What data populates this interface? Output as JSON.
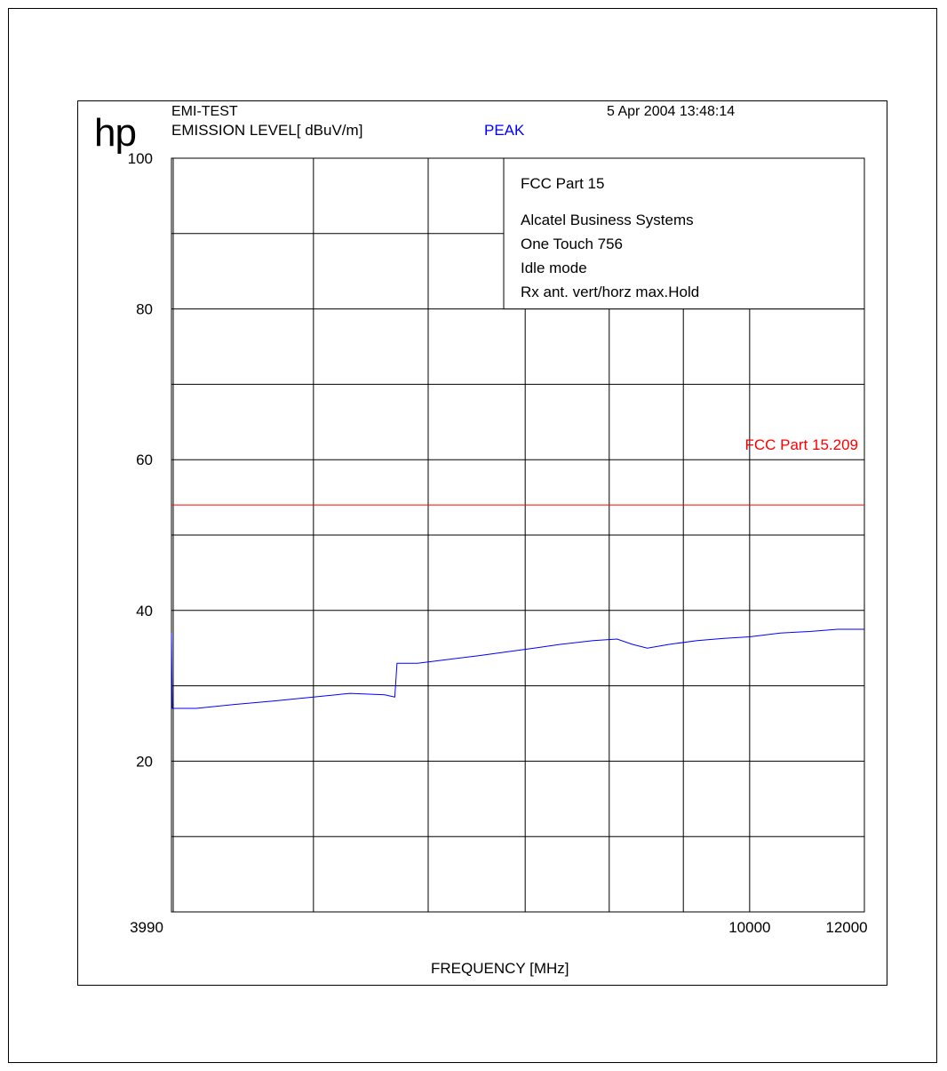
{
  "header": {
    "logo": "hp",
    "test_name": "EMI-TEST",
    "detector": "PEAK",
    "timestamp": "5 Apr 2004  13:48:14"
  },
  "colors": {
    "trace": "#0000ff",
    "limit": "#ff0000",
    "detector": "#0000ff",
    "grid": "#000000"
  },
  "chart_data": {
    "type": "line",
    "title": "",
    "ylabel": "EMISSION LEVEL[  dBuV/m]",
    "xlabel": "FREQUENCY [MHz]",
    "x_scale": "log",
    "xlim": [
      3990,
      12000
    ],
    "ylim": [
      0,
      100
    ],
    "y_ticks": [
      20,
      40,
      60,
      80,
      100
    ],
    "x_tick_labels": [
      "3990",
      "10000",
      "12000"
    ],
    "grid": true,
    "legend_box": {
      "position": "top-right",
      "lines": [
        "FCC Part 15",
        "Alcatel Business Systems",
        "One Touch 756",
        "Idle mode",
        "Rx ant. vert/horz  max.Hold"
      ]
    },
    "limit_line": {
      "label": "FCC Part 15.209",
      "value": 54
    },
    "series": [
      {
        "x": [
          3990,
          3995,
          4150,
          4400,
          4700,
          5000,
          5300,
          5600,
          5690,
          5710,
          5900,
          6200,
          6500,
          6800,
          7100,
          7400,
          7800,
          8100,
          8300,
          8500,
          8800,
          9200,
          9600,
          10000,
          10500,
          11000,
          11500,
          12000
        ],
        "values": [
          37,
          27,
          27,
          27.5,
          28,
          28.5,
          29,
          28.8,
          28.5,
          33,
          33,
          33.5,
          34,
          34.5,
          35,
          35.5,
          36,
          36.2,
          35.5,
          35,
          35.5,
          36,
          36.3,
          36.5,
          37,
          37.2,
          37.5,
          37.5
        ]
      }
    ]
  }
}
